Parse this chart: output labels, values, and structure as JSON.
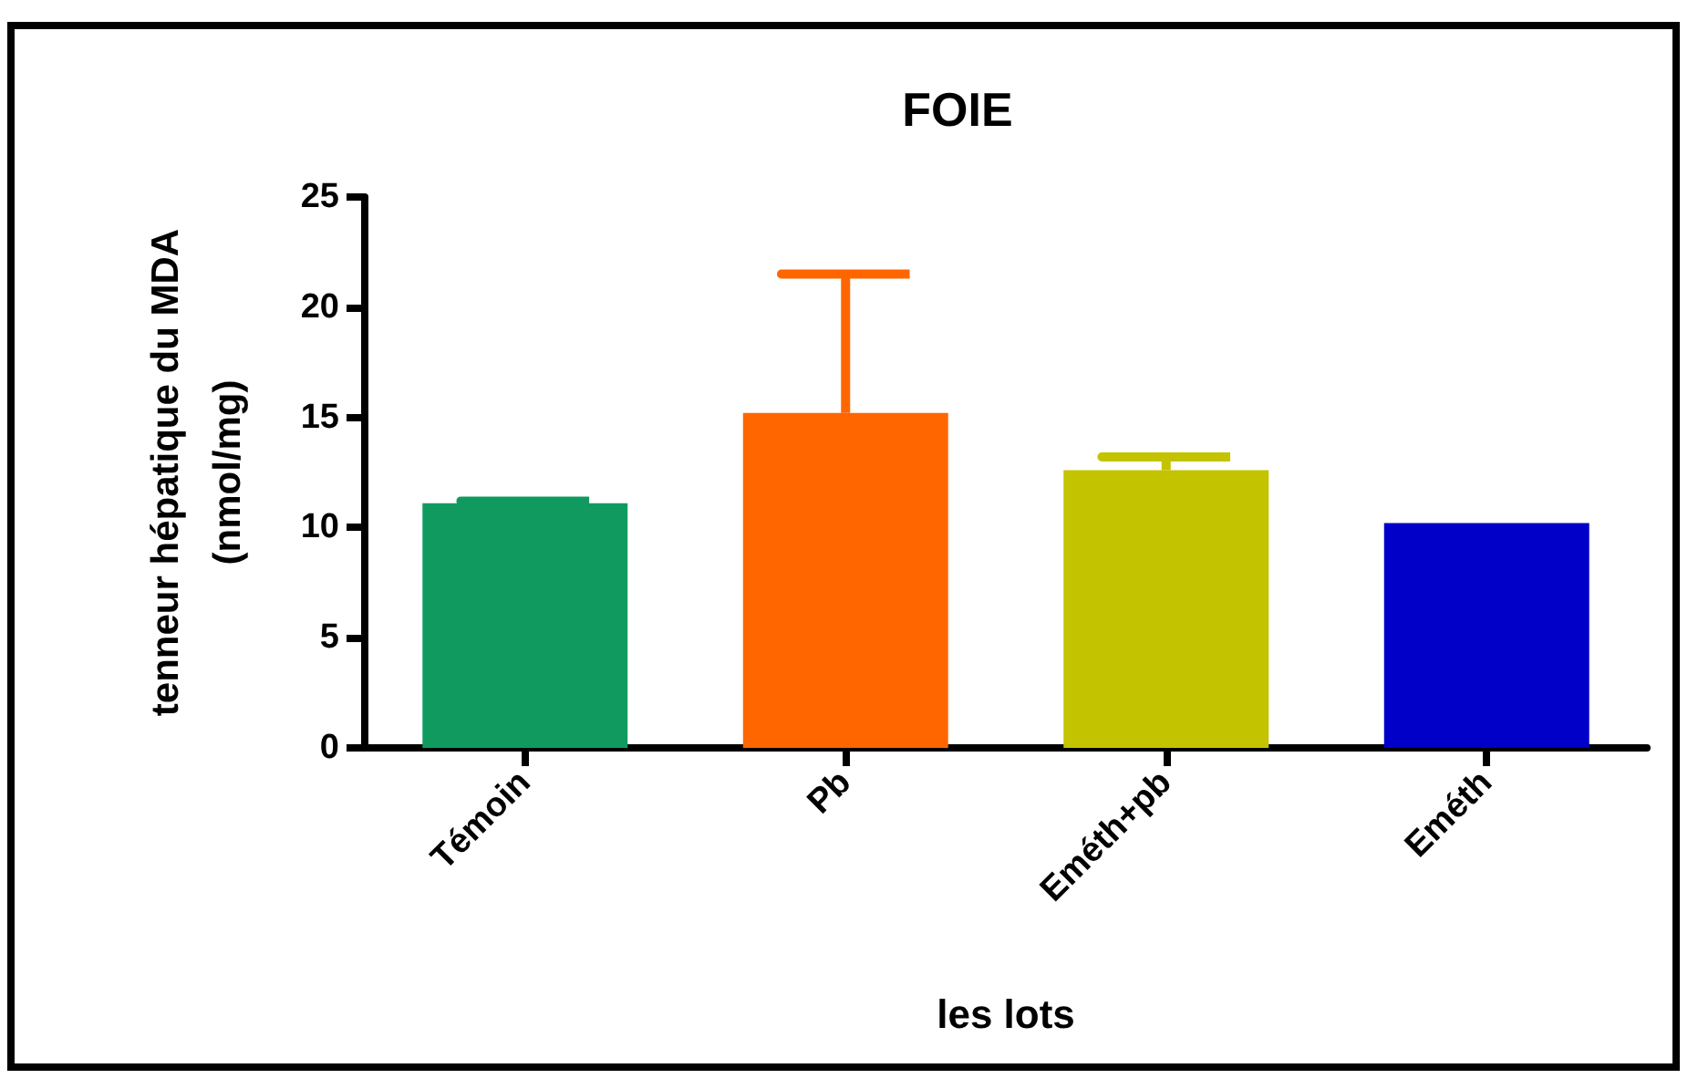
{
  "chart_data": {
    "type": "bar",
    "title": "FOIE",
    "xlabel": "les lots",
    "ylabel": "tenneur hépatique du MDA\n(nmol/mg)",
    "categories": [
      "Témoin",
      "Pb",
      "Eméth+pb",
      "Eméth"
    ],
    "values": [
      11.1,
      15.2,
      12.6,
      10.2
    ],
    "colors": [
      "#109a60",
      "#ff6600",
      "#c3c300",
      "#0000c8"
    ],
    "errors": [
      [
        11.1,
        11.2
      ],
      [
        15.2,
        21.5
      ],
      [
        12.6,
        13.2
      ],
      null
    ],
    "grid": false,
    "ylim": [
      0,
      25
    ],
    "yticks": [
      0,
      5,
      10,
      15,
      20,
      25
    ]
  }
}
